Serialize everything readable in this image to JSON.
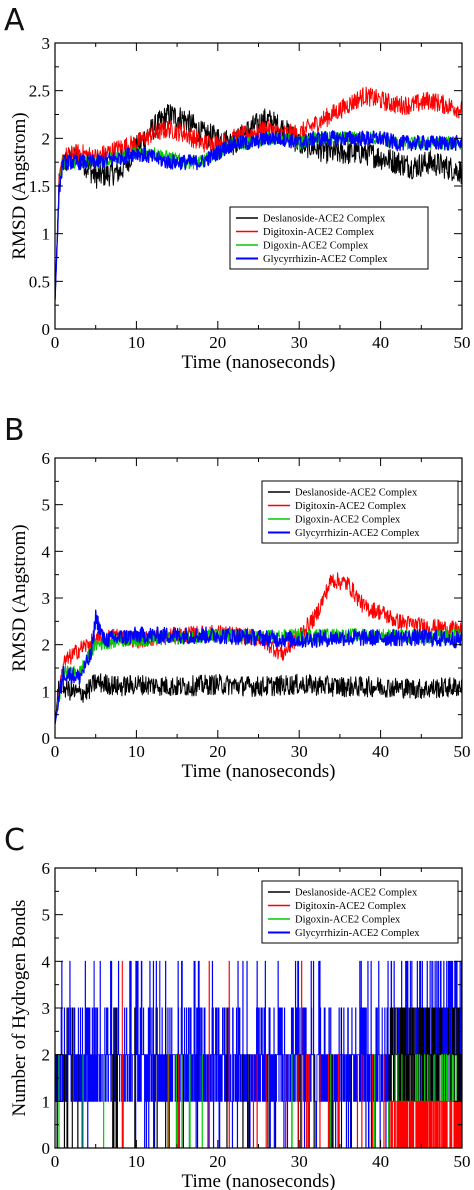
{
  "chart_data": [
    {
      "panel": "A",
      "type": "line",
      "xlabel": "Time (nanoseconds)",
      "ylabel": "RMSD (Angstrom)",
      "xlim": [
        0,
        50
      ],
      "ylim": [
        0,
        3
      ],
      "xticks": [
        0,
        10,
        20,
        30,
        40,
        50
      ],
      "xtick_labels": [
        "0",
        "10",
        "20",
        "30",
        "40",
        "50"
      ],
      "yticks": [
        0,
        0.5,
        1,
        1.5,
        2,
        2.5,
        3
      ],
      "ytick_labels": [
        "0",
        "0.5",
        "1",
        "1.5",
        "2",
        "2.5",
        "3"
      ],
      "legend_position": "center-right",
      "series": [
        {
          "name": "Deslanoside-ACE2 Complex",
          "color": "#000000",
          "x": [
            0,
            0.5,
            1,
            3,
            5,
            8,
            10,
            12,
            14,
            16,
            18,
            20,
            22,
            24,
            26,
            28,
            30,
            32,
            34,
            36,
            38,
            40,
            42,
            44,
            46,
            48,
            50
          ],
          "y": [
            0.3,
            1.5,
            1.75,
            1.8,
            1.6,
            1.65,
            1.9,
            2.1,
            2.25,
            2.2,
            2.05,
            2.0,
            1.95,
            2.1,
            2.2,
            2.1,
            1.95,
            1.9,
            1.85,
            1.85,
            1.85,
            1.8,
            1.75,
            1.7,
            1.75,
            1.7,
            1.65
          ],
          "noise": 0.13
        },
        {
          "name": "Digitoxin-ACE2 Complex",
          "color": "#ff0000",
          "x": [
            0,
            0.5,
            1,
            3,
            5,
            8,
            10,
            12,
            14,
            16,
            18,
            20,
            22,
            24,
            26,
            28,
            30,
            32,
            34,
            36,
            38,
            40,
            42,
            44,
            46,
            48,
            50
          ],
          "y": [
            0.3,
            1.5,
            1.8,
            1.85,
            1.8,
            1.9,
            1.95,
            2.05,
            2.1,
            2.05,
            1.95,
            1.95,
            2.0,
            2.05,
            2.1,
            2.05,
            2.05,
            2.15,
            2.25,
            2.35,
            2.45,
            2.4,
            2.35,
            2.35,
            2.4,
            2.35,
            2.3
          ],
          "noise": 0.1
        },
        {
          "name": "Digoxin-ACE2 Complex",
          "color": "#00cc00",
          "x": [
            0,
            0.5,
            1,
            3,
            5,
            8,
            10,
            12,
            14,
            16,
            18,
            20,
            22,
            24,
            26,
            28,
            30,
            32,
            34,
            36,
            38,
            40,
            42,
            44,
            46,
            48,
            50
          ],
          "y": [
            0.3,
            1.45,
            1.75,
            1.75,
            1.75,
            1.8,
            1.85,
            1.85,
            1.8,
            1.75,
            1.75,
            1.85,
            1.95,
            1.95,
            2.0,
            2.0,
            1.95,
            2.0,
            2.0,
            2.0,
            2.0,
            2.0,
            1.95,
            1.95,
            1.95,
            1.95,
            1.95
          ],
          "noise": 0.07
        },
        {
          "name": "Glycyrrhizin-ACE2 Complex",
          "color": "#0000ff",
          "x": [
            0,
            0.5,
            1,
            3,
            5,
            8,
            10,
            12,
            14,
            16,
            18,
            20,
            22,
            24,
            26,
            28,
            30,
            32,
            34,
            36,
            38,
            40,
            42,
            44,
            46,
            48,
            50
          ],
          "y": [
            0.3,
            1.45,
            1.75,
            1.75,
            1.75,
            1.8,
            1.85,
            1.8,
            1.75,
            1.75,
            1.75,
            1.85,
            1.95,
            1.95,
            2.0,
            2.0,
            1.95,
            2.0,
            2.0,
            2.0,
            2.0,
            2.0,
            1.95,
            1.95,
            1.95,
            1.95,
            1.95
          ],
          "noise": 0.08
        }
      ]
    },
    {
      "panel": "B",
      "type": "line",
      "xlabel": "Time (nanoseconds)",
      "ylabel": "RMSD (Angstrom)",
      "xlim": [
        0,
        50
      ],
      "ylim": [
        0,
        6
      ],
      "xticks": [
        0,
        10,
        20,
        30,
        40,
        50
      ],
      "xtick_labels": [
        "0",
        "10",
        "20",
        "30",
        "40",
        "50"
      ],
      "yticks": [
        0,
        1,
        2,
        3,
        4,
        5,
        6
      ],
      "ytick_labels": [
        "0",
        "1",
        "2",
        "3",
        "4",
        "5",
        "6"
      ],
      "legend_position": "top-right",
      "series": [
        {
          "name": "Deslanoside-ACE2 Complex",
          "color": "#000000",
          "x": [
            0,
            0.5,
            1,
            2,
            3,
            4,
            5,
            8,
            10,
            15,
            20,
            25,
            30,
            35,
            40,
            45,
            50
          ],
          "y": [
            0.3,
            1.2,
            1.1,
            1.0,
            0.95,
            1.0,
            1.2,
            1.1,
            1.15,
            1.1,
            1.15,
            1.1,
            1.15,
            1.1,
            1.1,
            1.05,
            1.1
          ],
          "noise": 0.22
        },
        {
          "name": "Digitoxin-ACE2 Complex",
          "color": "#ff0000",
          "x": [
            0,
            1,
            3,
            5,
            8,
            10,
            15,
            20,
            25,
            28,
            30,
            32,
            34,
            36,
            38,
            40,
            42,
            45,
            48,
            50
          ],
          "y": [
            0.3,
            1.6,
            1.9,
            2.1,
            2.2,
            2.1,
            2.2,
            2.25,
            2.15,
            1.8,
            2.2,
            2.6,
            3.4,
            3.3,
            2.8,
            2.7,
            2.5,
            2.4,
            2.35,
            2.3
          ],
          "noise": 0.18
        },
        {
          "name": "Digoxin-ACE2 Complex",
          "color": "#00cc00",
          "x": [
            0,
            1,
            3,
            5,
            8,
            10,
            15,
            20,
            25,
            30,
            35,
            40,
            45,
            50
          ],
          "y": [
            0.3,
            1.4,
            1.4,
            2.0,
            2.1,
            2.1,
            2.15,
            2.2,
            2.15,
            2.2,
            2.2,
            2.2,
            2.15,
            2.2
          ],
          "noise": 0.15
        },
        {
          "name": "Glycyrrhizin-ACE2 Complex",
          "color": "#0000ff",
          "x": [
            0,
            1,
            3,
            4.5,
            5,
            6,
            8,
            10,
            15,
            20,
            25,
            30,
            35,
            40,
            45,
            50
          ],
          "y": [
            0.3,
            1.4,
            1.3,
            1.8,
            2.6,
            2.1,
            2.15,
            2.2,
            2.2,
            2.2,
            2.15,
            2.1,
            2.15,
            2.15,
            2.15,
            2.1
          ],
          "noise": 0.18
        }
      ]
    },
    {
      "panel": "C",
      "type": "line",
      "xlabel": "Time (nanoseconds)",
      "ylabel": "Number of Hydrogen Bonds",
      "xlim": [
        0,
        50
      ],
      "ylim": [
        0,
        6
      ],
      "xticks": [
        0,
        10,
        20,
        30,
        40,
        50
      ],
      "xtick_labels": [
        "0",
        "10",
        "20",
        "30",
        "40",
        "50"
      ],
      "yticks": [
        0,
        1,
        2,
        3,
        4,
        5,
        6
      ],
      "ytick_labels": [
        "0",
        "1",
        "2",
        "3",
        "4",
        "5",
        "6"
      ],
      "legend_position": "top-right",
      "series": [
        {
          "name": "Deslanoside-ACE2 Complex",
          "color": "#000000",
          "x": [
            0,
            41,
            42,
            50
          ],
          "y": [
            0,
            0,
            2,
            2
          ]
        },
        {
          "name": "Digitoxin-ACE2 Complex",
          "color": "#ff0000",
          "x": [
            0,
            11,
            41,
            50
          ],
          "y": [
            0,
            4,
            1,
            1
          ]
        },
        {
          "name": "Digoxin-ACE2 Complex",
          "color": "#00cc00",
          "x": [
            0,
            9.5,
            41,
            47,
            50
          ],
          "y": [
            0,
            2,
            1,
            2,
            1
          ]
        },
        {
          "name": "Glycyrrhizin-ACE2 Complex",
          "color": "#0000ff",
          "x": [
            0,
            5,
            10,
            20,
            30,
            40,
            50
          ],
          "y": [
            2,
            2,
            2,
            2,
            2,
            2,
            2
          ]
        }
      ]
    }
  ],
  "panels": [
    {
      "letter": "A"
    },
    {
      "letter": "B"
    },
    {
      "letter": "C"
    }
  ]
}
